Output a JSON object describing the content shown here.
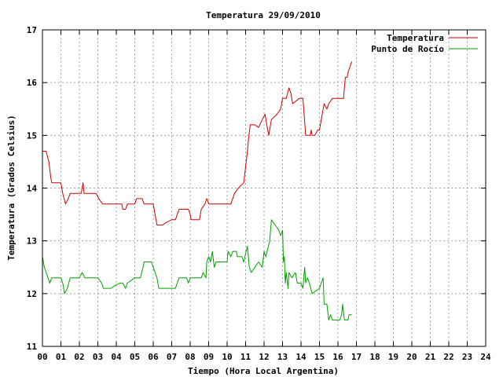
{
  "chart_data": {
    "type": "line",
    "title": "Temperatura 29/09/2010",
    "xlabel": "Tiempo (Hora Local Argentina)",
    "ylabel": "Temperatura (Grados Celsius)",
    "xlim": [
      0,
      24
    ],
    "ylim": [
      11,
      17
    ],
    "x_ticks": [
      "00",
      "01",
      "02",
      "03",
      "04",
      "05",
      "06",
      "07",
      "08",
      "09",
      "10",
      "11",
      "12",
      "13",
      "14",
      "15",
      "16",
      "17",
      "18",
      "19",
      "20",
      "21",
      "22",
      "23",
      "24"
    ],
    "y_ticks": [
      "11",
      "12",
      "13",
      "14",
      "15",
      "16",
      "17"
    ],
    "grid": true,
    "legend_position": "top-right",
    "series": [
      {
        "name": "Temperatura",
        "color": "#cc0000",
        "points": [
          [
            0.0,
            14.7
          ],
          [
            0.2,
            14.7
          ],
          [
            0.35,
            14.5
          ],
          [
            0.45,
            14.2
          ],
          [
            0.5,
            14.1
          ],
          [
            0.6,
            14.1
          ],
          [
            1.0,
            14.1
          ],
          [
            1.1,
            13.9
          ],
          [
            1.25,
            13.7
          ],
          [
            1.4,
            13.8
          ],
          [
            1.5,
            13.9
          ],
          [
            2.1,
            13.9
          ],
          [
            2.2,
            14.1
          ],
          [
            2.25,
            13.9
          ],
          [
            2.9,
            13.9
          ],
          [
            3.05,
            13.8
          ],
          [
            3.25,
            13.7
          ],
          [
            4.3,
            13.7
          ],
          [
            4.35,
            13.6
          ],
          [
            4.5,
            13.6
          ],
          [
            4.6,
            13.7
          ],
          [
            5.0,
            13.7
          ],
          [
            5.1,
            13.8
          ],
          [
            5.4,
            13.8
          ],
          [
            5.5,
            13.7
          ],
          [
            6.0,
            13.7
          ],
          [
            6.1,
            13.5
          ],
          [
            6.2,
            13.3
          ],
          [
            6.5,
            13.3
          ],
          [
            6.7,
            13.35
          ],
          [
            7.0,
            13.4
          ],
          [
            7.2,
            13.4
          ],
          [
            7.3,
            13.5
          ],
          [
            7.4,
            13.6
          ],
          [
            7.9,
            13.6
          ],
          [
            8.0,
            13.5
          ],
          [
            8.05,
            13.4
          ],
          [
            8.5,
            13.4
          ],
          [
            8.6,
            13.6
          ],
          [
            8.8,
            13.7
          ],
          [
            8.9,
            13.8
          ],
          [
            9.0,
            13.7
          ],
          [
            10.2,
            13.7
          ],
          [
            10.3,
            13.8
          ],
          [
            10.4,
            13.9
          ],
          [
            10.6,
            14.0
          ],
          [
            10.9,
            14.1
          ],
          [
            11.0,
            14.4
          ],
          [
            11.1,
            14.7
          ],
          [
            11.15,
            14.9
          ],
          [
            11.25,
            15.2
          ],
          [
            11.5,
            15.2
          ],
          [
            11.7,
            15.15
          ],
          [
            11.9,
            15.3
          ],
          [
            12.05,
            15.4
          ],
          [
            12.15,
            15.2
          ],
          [
            12.25,
            15.0
          ],
          [
            12.4,
            15.3
          ],
          [
            12.7,
            15.4
          ],
          [
            12.9,
            15.5
          ],
          [
            13.0,
            15.7
          ],
          [
            13.2,
            15.7
          ],
          [
            13.35,
            15.9
          ],
          [
            13.45,
            15.8
          ],
          [
            13.55,
            15.6
          ],
          [
            13.9,
            15.7
          ],
          [
            14.1,
            15.7
          ],
          [
            14.15,
            15.5
          ],
          [
            14.25,
            15.0
          ],
          [
            14.5,
            15.0
          ],
          [
            14.55,
            15.1
          ],
          [
            14.6,
            15.0
          ],
          [
            14.75,
            15.0
          ],
          [
            14.9,
            15.1
          ],
          [
            15.0,
            15.1
          ],
          [
            15.1,
            15.3
          ],
          [
            15.25,
            15.6
          ],
          [
            15.4,
            15.5
          ],
          [
            15.5,
            15.6
          ],
          [
            15.7,
            15.7
          ],
          [
            16.3,
            15.7
          ],
          [
            16.35,
            15.9
          ],
          [
            16.4,
            16.1
          ],
          [
            16.5,
            16.1
          ],
          [
            16.55,
            16.2
          ],
          [
            16.65,
            16.3
          ],
          [
            16.75,
            16.4
          ]
        ]
      },
      {
        "name": "Punto de Rocío",
        "color": "#00a000",
        "points": [
          [
            0.0,
            12.7
          ],
          [
            0.1,
            12.5
          ],
          [
            0.2,
            12.4
          ],
          [
            0.3,
            12.3
          ],
          [
            0.4,
            12.2
          ],
          [
            0.5,
            12.3
          ],
          [
            1.0,
            12.3
          ],
          [
            1.1,
            12.2
          ],
          [
            1.2,
            12.0
          ],
          [
            1.35,
            12.1
          ],
          [
            1.5,
            12.3
          ],
          [
            2.0,
            12.3
          ],
          [
            2.15,
            12.4
          ],
          [
            2.3,
            12.3
          ],
          [
            3.0,
            12.3
          ],
          [
            3.2,
            12.2
          ],
          [
            3.3,
            12.1
          ],
          [
            3.7,
            12.1
          ],
          [
            3.9,
            12.15
          ],
          [
            4.2,
            12.2
          ],
          [
            4.35,
            12.2
          ],
          [
            4.5,
            12.1
          ],
          [
            4.6,
            12.2
          ],
          [
            5.0,
            12.3
          ],
          [
            5.3,
            12.3
          ],
          [
            5.45,
            12.5
          ],
          [
            5.5,
            12.6
          ],
          [
            5.9,
            12.6
          ],
          [
            6.0,
            12.5
          ],
          [
            6.2,
            12.3
          ],
          [
            6.3,
            12.1
          ],
          [
            7.2,
            12.1
          ],
          [
            7.3,
            12.2
          ],
          [
            7.4,
            12.3
          ],
          [
            7.8,
            12.3
          ],
          [
            7.9,
            12.2
          ],
          [
            8.0,
            12.3
          ],
          [
            8.6,
            12.3
          ],
          [
            8.7,
            12.4
          ],
          [
            8.85,
            12.3
          ],
          [
            8.9,
            12.6
          ],
          [
            9.0,
            12.7
          ],
          [
            9.1,
            12.6
          ],
          [
            9.2,
            12.8
          ],
          [
            9.3,
            12.5
          ],
          [
            9.4,
            12.6
          ],
          [
            10.0,
            12.6
          ],
          [
            10.05,
            12.8
          ],
          [
            10.2,
            12.7
          ],
          [
            10.3,
            12.8
          ],
          [
            10.5,
            12.8
          ],
          [
            10.55,
            12.7
          ],
          [
            10.8,
            12.7
          ],
          [
            10.9,
            12.6
          ],
          [
            11.1,
            12.9
          ],
          [
            11.2,
            12.5
          ],
          [
            11.3,
            12.4
          ],
          [
            11.5,
            12.5
          ],
          [
            11.7,
            12.6
          ],
          [
            11.9,
            12.5
          ],
          [
            12.0,
            12.8
          ],
          [
            12.1,
            12.7
          ],
          [
            12.3,
            13.0
          ],
          [
            12.4,
            13.4
          ],
          [
            12.6,
            13.3
          ],
          [
            12.8,
            13.2
          ],
          [
            12.9,
            13.1
          ],
          [
            13.0,
            13.2
          ],
          [
            13.05,
            12.6
          ],
          [
            13.1,
            12.7
          ],
          [
            13.15,
            12.2
          ],
          [
            13.2,
            12.4
          ],
          [
            13.3,
            12.1
          ],
          [
            13.35,
            12.4
          ],
          [
            13.5,
            12.3
          ],
          [
            13.7,
            12.4
          ],
          [
            13.8,
            12.2
          ],
          [
            14.0,
            12.2
          ],
          [
            14.1,
            12.1
          ],
          [
            14.2,
            12.5
          ],
          [
            14.25,
            12.2
          ],
          [
            14.35,
            12.3
          ],
          [
            14.45,
            12.2
          ],
          [
            14.6,
            12.0
          ],
          [
            14.8,
            12.05
          ],
          [
            15.0,
            12.1
          ],
          [
            15.1,
            12.2
          ],
          [
            15.2,
            12.3
          ],
          [
            15.25,
            11.8
          ],
          [
            15.4,
            11.8
          ],
          [
            15.5,
            11.5
          ],
          [
            15.6,
            11.6
          ],
          [
            15.7,
            11.5
          ],
          [
            16.1,
            11.5
          ],
          [
            16.2,
            11.6
          ],
          [
            16.25,
            11.8
          ],
          [
            16.35,
            11.5
          ],
          [
            16.55,
            11.5
          ],
          [
            16.6,
            11.6
          ],
          [
            16.75,
            11.6
          ]
        ]
      }
    ]
  }
}
